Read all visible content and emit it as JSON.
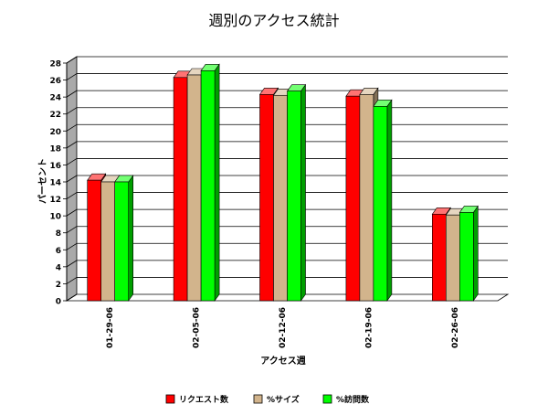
{
  "chart_data": {
    "type": "bar",
    "title": "週別のアクセス統計",
    "xlabel": "アクセス週",
    "ylabel": "パーセント",
    "categories": [
      "01-29-06",
      "02-05-06",
      "02-12-06",
      "02-19-06",
      "02-26-06"
    ],
    "ylim": [
      0,
      28
    ],
    "yticks": [
      0,
      2,
      4,
      6,
      8,
      10,
      12,
      14,
      16,
      18,
      20,
      22,
      24,
      26,
      28
    ],
    "grid": true,
    "legend_position": "bottom",
    "series": [
      {
        "name": "リクエスト数",
        "color": "#ff0000",
        "values": [
          14.2,
          26.3,
          24.3,
          24.1,
          10.2
        ]
      },
      {
        "name": "%サイズ",
        "color": "#d2b48c",
        "values": [
          14.0,
          26.6,
          24.2,
          24.3,
          10.1
        ]
      },
      {
        "name": "%訪問数",
        "color": "#00ff00",
        "values": [
          14.0,
          27.1,
          24.7,
          22.9,
          10.4
        ]
      }
    ]
  }
}
